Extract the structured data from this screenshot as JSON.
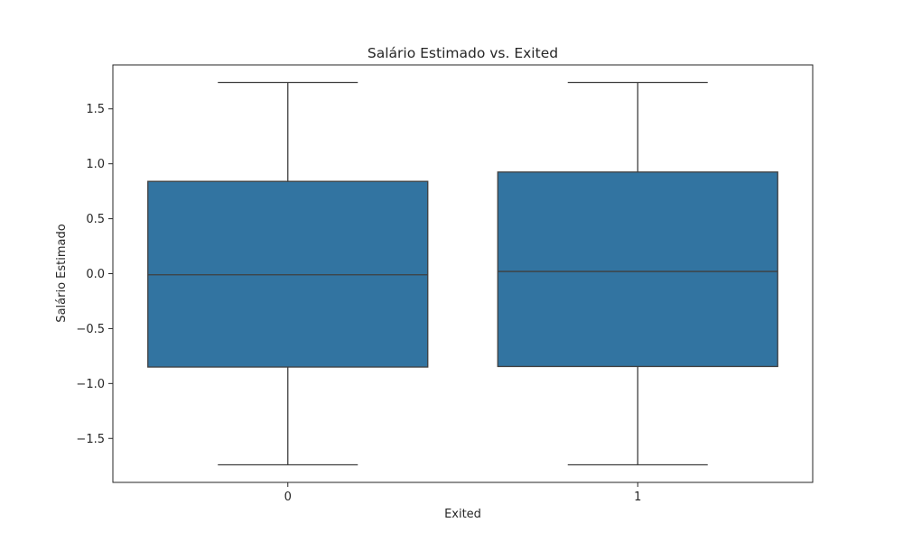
{
  "chart_data": {
    "type": "box",
    "title": "Salário Estimado vs. Exited",
    "xlabel": "Exited",
    "ylabel": "Salário Estimado",
    "categories": [
      "0",
      "1"
    ],
    "boxes": [
      {
        "category": "0",
        "whisker_low": -1.74,
        "q1": -0.85,
        "median": -0.01,
        "q3": 0.84,
        "whisker_high": 1.74
      },
      {
        "category": "1",
        "whisker_low": -1.74,
        "q1": -0.845,
        "median": 0.02,
        "q3": 0.925,
        "whisker_high": 1.74
      }
    ],
    "ylim": [
      -1.9,
      1.9
    ],
    "yticks": [
      -1.5,
      -1.0,
      -0.5,
      0.0,
      0.5,
      1.0,
      1.5
    ],
    "ytick_labels": [
      "−1.5",
      "−1.0",
      "−0.5",
      "0.0",
      "0.5",
      "1.0",
      "1.5"
    ],
    "grid": false,
    "box_color": "#3274a1",
    "line_color": "#3f3f3f"
  }
}
